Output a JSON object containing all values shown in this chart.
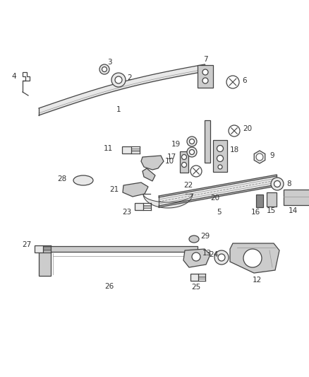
{
  "bg_color": "#ffffff",
  "line_color": "#444444",
  "fill_light": "#e8e8e8",
  "fill_mid": "#cccccc",
  "lw": 0.9
}
